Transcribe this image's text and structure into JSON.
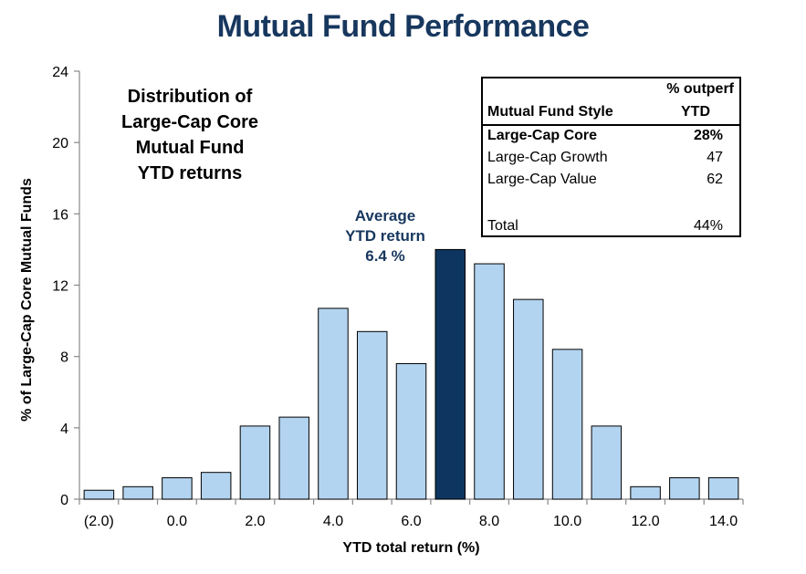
{
  "title": "Mutual Fund Performance",
  "chart_data": {
    "type": "bar",
    "title": "Distribution of Large-Cap Core Mutual Fund YTD returns",
    "title_lines": [
      "Distribution of",
      "Large-Cap  Core",
      "Mutual Fund",
      "YTD returns"
    ],
    "xlabel": "YTD total return (%)",
    "ylabel": "% of Large-Cap Core Mutual Funds",
    "ylim": [
      0,
      24
    ],
    "yticks": [
      "0",
      "4",
      "8",
      "12",
      "16",
      "20",
      "24"
    ],
    "xtick_labels": [
      "(2.0)",
      "0.0",
      "2.0",
      "4.0",
      "6.0",
      "8.0",
      "10.0",
      "12.0",
      "14.0"
    ],
    "values": [
      0.5,
      0.7,
      1.2,
      1.5,
      4.1,
      4.6,
      10.7,
      9.4,
      7.6,
      14.0,
      13.2,
      11.2,
      8.4,
      4.1,
      0.7,
      1.2,
      1.2
    ],
    "highlight_index": 9,
    "colors": {
      "bar": "#b3d4f0",
      "highlight": "#0d3560",
      "border": "#000000"
    },
    "grid": false,
    "annotation_lines": [
      "Average",
      "YTD return",
      "6.4 %"
    ]
  },
  "table": {
    "header_col1": "Mutual Fund Style",
    "header_col2_line1": "% outperf",
    "header_col2_line2": "YTD",
    "rows": [
      {
        "label": "Large-Cap Core",
        "value": "28%"
      },
      {
        "label": "Large-Cap Growth",
        "value": "47"
      },
      {
        "label": "Large-Cap Value",
        "value": "62"
      },
      {
        "label": "Total",
        "value": "44%"
      }
    ]
  }
}
